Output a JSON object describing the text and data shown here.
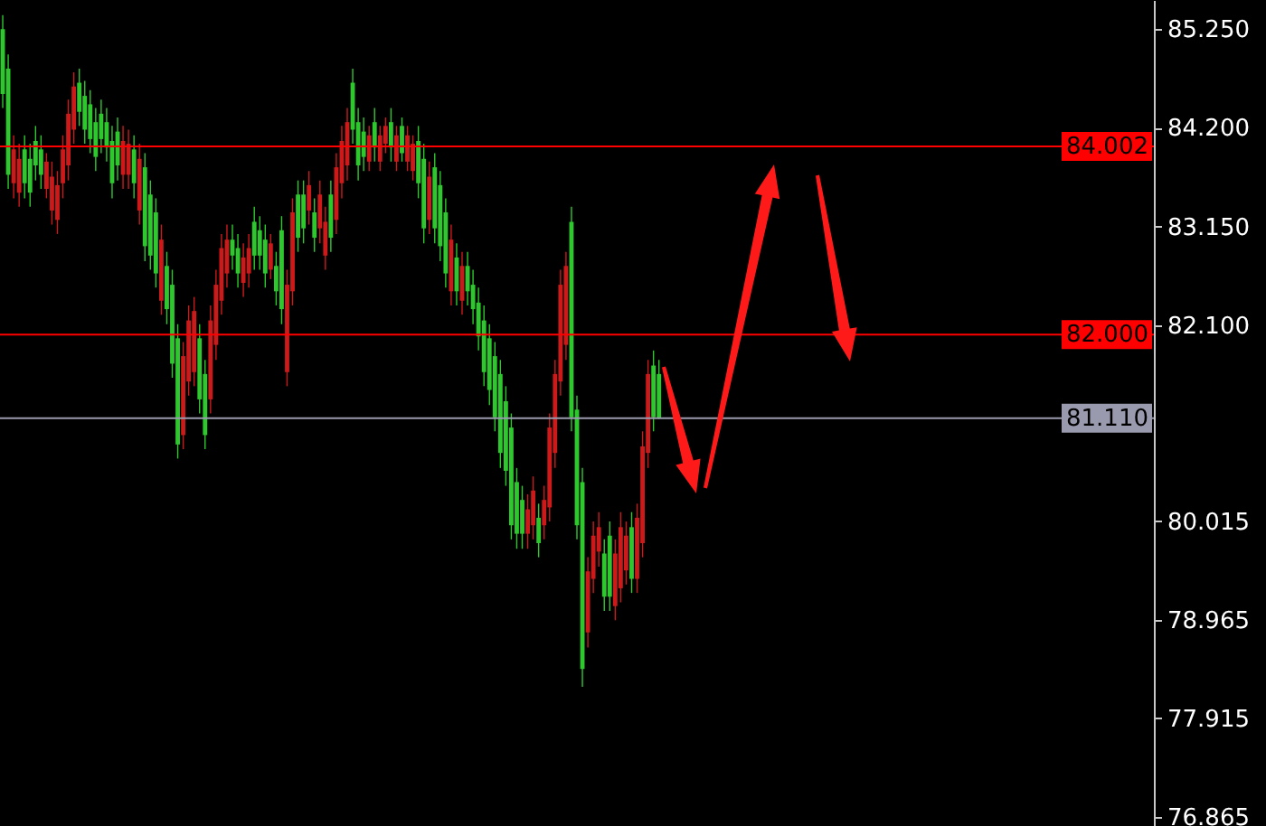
{
  "chart_data": {
    "type": "candlestick",
    "tick_labels": "y",
    "categories": [
      null,
      null,
      null,
      null,
      null,
      null,
      null,
      null,
      null,
      null,
      null,
      null,
      null,
      null,
      null,
      null,
      null,
      null,
      null,
      null,
      null,
      null,
      null,
      null,
      null,
      null,
      null,
      null,
      null,
      null,
      null,
      null,
      null,
      null,
      null,
      null,
      null,
      null,
      null,
      null,
      null,
      null,
      null,
      null,
      null,
      null,
      null,
      null,
      null,
      null,
      null,
      null,
      null,
      null,
      null,
      null,
      null,
      null,
      null,
      null,
      null,
      null,
      null,
      null,
      null,
      null,
      null,
      null,
      null,
      null,
      null,
      null,
      null,
      null,
      null,
      null,
      null,
      null,
      null,
      null,
      null,
      null,
      null,
      null,
      null,
      null,
      null,
      null,
      null,
      null,
      null,
      null,
      null,
      null,
      null,
      null,
      null,
      null,
      null,
      null,
      null,
      null,
      null,
      null,
      null,
      null,
      null,
      null,
      null,
      null,
      null,
      null,
      null,
      null,
      null,
      null,
      null,
      null,
      null,
      null,
      null,
      null,
      null,
      null,
      null,
      null,
      null,
      null,
      null,
      null,
      null,
      null,
      null,
      null,
      null,
      null,
      null,
      null,
      null,
      null,
      null,
      null,
      null,
      null,
      null,
      null,
      null,
      null,
      null,
      null,
      null,
      null,
      null,
      null,
      null,
      null,
      null,
      null,
      null,
      null,
      null,
      null,
      null,
      null,
      null,
      null,
      null,
      null,
      null,
      null,
      null,
      null,
      null,
      null,
      null,
      null,
      null,
      null,
      null,
      null,
      null,
      null,
      null,
      null,
      null,
      null,
      null,
      null,
      null,
      null,
      null,
      null,
      null,
      null,
      null,
      null,
      null,
      null,
      null,
      null,
      null,
      null,
      null,
      null,
      null,
      null,
      null,
      null,
      null,
      null,
      null
    ],
    "ohlc": [
      [
        85.25,
        85.4,
        84.41,
        84.56
      ],
      [
        84.83,
        84.98,
        83.55,
        83.7
      ],
      [
        83.61,
        84.12,
        83.45,
        83.97
      ],
      [
        83.51,
        84.03,
        83.36,
        83.87
      ],
      [
        83.97,
        84.12,
        83.45,
        83.61
      ],
      [
        83.87,
        84.03,
        83.36,
        83.51
      ],
      [
        84.06,
        84.22,
        83.64,
        83.8
      ],
      [
        83.97,
        84.12,
        83.55,
        83.7
      ],
      [
        83.55,
        83.93,
        83.45,
        83.84
      ],
      [
        83.32,
        83.84,
        83.17,
        83.68
      ],
      [
        83.22,
        83.74,
        83.07,
        83.59
      ],
      [
        83.61,
        84.12,
        83.45,
        83.97
      ],
      [
        83.8,
        84.5,
        83.64,
        84.35
      ],
      [
        84.18,
        84.79,
        84.03,
        84.64
      ],
      [
        84.68,
        84.83,
        84.22,
        84.37
      ],
      [
        84.54,
        84.7,
        84.03,
        84.18
      ],
      [
        84.45,
        84.6,
        83.93,
        84.08
      ],
      [
        84.26,
        84.41,
        83.74,
        83.89
      ],
      [
        84.35,
        84.5,
        83.93,
        84.08
      ],
      [
        84.26,
        84.41,
        83.84,
        83.99
      ],
      [
        84.06,
        84.22,
        83.45,
        83.61
      ],
      [
        84.16,
        84.31,
        83.64,
        83.8
      ],
      [
        83.7,
        84.22,
        83.55,
        84.06
      ],
      [
        83.7,
        84.18,
        83.55,
        84.03
      ],
      [
        83.97,
        84.12,
        83.45,
        83.61
      ],
      [
        83.32,
        84.03,
        83.17,
        83.87
      ],
      [
        83.78,
        83.93,
        82.78,
        82.94
      ],
      [
        83.49,
        83.64,
        82.69,
        82.84
      ],
      [
        83.3,
        83.45,
        82.5,
        82.65
      ],
      [
        82.36,
        83.17,
        82.21,
        83.01
      ],
      [
        82.73,
        82.88,
        82.11,
        82.27
      ],
      [
        82.53,
        82.69,
        81.54,
        81.69
      ],
      [
        81.96,
        82.11,
        80.68,
        80.83
      ],
      [
        80.93,
        81.92,
        80.78,
        81.77
      ],
      [
        81.5,
        82.31,
        81.35,
        82.15
      ],
      [
        81.6,
        82.4,
        81.45,
        82.25
      ],
      [
        81.96,
        82.11,
        81.16,
        81.31
      ],
      [
        81.58,
        81.73,
        80.78,
        80.93
      ],
      [
        81.31,
        82.31,
        81.16,
        82.15
      ],
      [
        81.89,
        82.69,
        81.73,
        82.53
      ],
      [
        82.36,
        83.07,
        82.21,
        82.92
      ],
      [
        82.65,
        83.17,
        82.5,
        83.01
      ],
      [
        83.01,
        83.17,
        82.69,
        82.84
      ],
      [
        82.92,
        83.07,
        82.5,
        82.65
      ],
      [
        82.55,
        82.97,
        82.4,
        82.82
      ],
      [
        82.65,
        83.07,
        82.5,
        82.92
      ],
      [
        83.2,
        83.36,
        82.69,
        82.84
      ],
      [
        83.11,
        83.26,
        82.69,
        82.84
      ],
      [
        83.01,
        83.17,
        82.5,
        82.65
      ],
      [
        82.69,
        83.07,
        82.59,
        82.97
      ],
      [
        82.73,
        82.88,
        82.31,
        82.46
      ],
      [
        83.11,
        83.26,
        82.11,
        82.27
      ],
      [
        81.6,
        82.69,
        81.45,
        82.53
      ],
      [
        82.46,
        83.45,
        82.31,
        83.3
      ],
      [
        83.49,
        83.64,
        82.88,
        83.03
      ],
      [
        83.49,
        83.64,
        82.97,
        83.13
      ],
      [
        83.32,
        83.74,
        83.17,
        83.59
      ],
      [
        83.3,
        83.45,
        82.88,
        83.03
      ],
      [
        83.13,
        83.64,
        82.97,
        83.49
      ],
      [
        82.84,
        83.36,
        82.69,
        83.2
      ],
      [
        83.49,
        83.64,
        82.88,
        83.03
      ],
      [
        83.22,
        83.93,
        83.07,
        83.78
      ],
      [
        83.61,
        84.22,
        83.45,
        84.06
      ],
      [
        83.8,
        84.41,
        83.64,
        84.26
      ],
      [
        84.68,
        84.83,
        84.03,
        84.18
      ],
      [
        84.26,
        84.41,
        83.64,
        83.8
      ],
      [
        84.16,
        84.31,
        83.74,
        83.89
      ],
      [
        83.84,
        84.22,
        83.74,
        84.12
      ],
      [
        84.26,
        84.41,
        83.84,
        83.99
      ],
      [
        83.84,
        84.22,
        83.74,
        84.12
      ],
      [
        84.03,
        84.31,
        83.93,
        84.22
      ],
      [
        84.26,
        84.41,
        83.84,
        83.99
      ],
      [
        83.84,
        84.22,
        83.74,
        84.12
      ],
      [
        84.22,
        84.31,
        83.84,
        83.93
      ],
      [
        83.84,
        84.22,
        83.74,
        84.12
      ],
      [
        83.74,
        84.12,
        83.64,
        84.03
      ],
      [
        84.06,
        84.22,
        83.45,
        83.61
      ],
      [
        83.87,
        84.03,
        82.97,
        83.13
      ],
      [
        83.22,
        83.84,
        83.07,
        83.68
      ],
      [
        83.78,
        83.93,
        82.97,
        83.13
      ],
      [
        83.59,
        83.74,
        82.78,
        82.94
      ],
      [
        83.3,
        83.45,
        82.5,
        82.65
      ],
      [
        82.46,
        83.17,
        82.31,
        83.01
      ],
      [
        82.82,
        82.97,
        82.31,
        82.46
      ],
      [
        82.36,
        82.88,
        82.21,
        82.73
      ],
      [
        82.73,
        82.88,
        82.31,
        82.46
      ],
      [
        82.53,
        82.69,
        82.11,
        82.27
      ],
      [
        82.34,
        82.5,
        81.83,
        81.98
      ],
      [
        82.15,
        82.31,
        81.45,
        81.6
      ],
      [
        81.96,
        82.11,
        81.25,
        81.41
      ],
      [
        81.77,
        81.92,
        80.97,
        81.12
      ],
      [
        81.58,
        81.73,
        80.58,
        80.74
      ],
      [
        81.29,
        81.45,
        80.39,
        80.55
      ],
      [
        81.01,
        81.16,
        79.82,
        79.97
      ],
      [
        80.43,
        80.58,
        79.72,
        79.88
      ],
      [
        80.24,
        80.39,
        79.72,
        79.88
      ],
      [
        79.88,
        80.3,
        79.72,
        80.14
      ],
      [
        79.97,
        80.49,
        79.82,
        80.34
      ],
      [
        80.05,
        80.2,
        79.63,
        79.78
      ],
      [
        79.97,
        80.39,
        79.82,
        80.24
      ],
      [
        80.16,
        81.16,
        80.01,
        81.01
      ],
      [
        80.74,
        81.73,
        80.58,
        81.58
      ],
      [
        81.5,
        82.69,
        81.35,
        82.53
      ],
      [
        81.89,
        82.88,
        81.73,
        82.73
      ],
      [
        83.2,
        83.36,
        80.97,
        81.12
      ],
      [
        81.2,
        81.35,
        79.82,
        79.97
      ],
      [
        80.43,
        80.58,
        78.25,
        78.44
      ],
      [
        78.83,
        79.63,
        78.67,
        79.48
      ],
      [
        79.4,
        80.01,
        79.25,
        79.86
      ],
      [
        79.69,
        80.11,
        79.53,
        79.95
      ],
      [
        79.67,
        79.82,
        79.06,
        79.21
      ],
      [
        79.86,
        80.01,
        79.06,
        79.21
      ],
      [
        79.11,
        79.82,
        78.96,
        79.67
      ],
      [
        79.3,
        80.11,
        79.15,
        79.95
      ],
      [
        79.49,
        80.01,
        79.34,
        79.86
      ],
      [
        79.95,
        80.11,
        79.25,
        79.4
      ],
      [
        79.4,
        80.2,
        79.25,
        80.05
      ],
      [
        79.78,
        80.97,
        79.63,
        80.81
      ],
      [
        80.74,
        81.73,
        80.58,
        81.58
      ],
      [
        81.67,
        81.83,
        80.97,
        81.12
      ],
      [
        81.58,
        81.73,
        81.1,
        81.11
      ],
      null,
      null,
      null,
      null,
      null,
      null,
      null,
      null,
      null,
      null,
      null,
      null,
      null,
      null,
      null,
      null,
      null,
      null,
      null,
      null,
      null,
      null,
      null,
      null,
      null,
      null,
      null,
      null,
      null,
      null,
      null,
      null,
      null,
      null,
      null,
      null,
      null,
      null,
      null,
      null,
      null,
      null,
      null,
      null,
      null,
      null,
      null,
      null,
      null,
      null,
      null,
      null,
      null,
      null,
      null,
      null,
      null,
      null,
      null,
      null,
      null,
      null,
      null,
      null,
      null,
      null,
      null,
      null,
      null,
      null,
      null,
      null,
      null,
      null,
      null,
      null,
      null,
      null,
      null,
      null,
      null,
      null,
      null,
      null,
      null,
      null,
      null,
      null,
      null,
      null
    ],
    "colors": [
      "#2ec82e",
      "#2ec82e",
      "#cc1a1a",
      "#cc1a1a",
      "#2ec82e",
      "#2ec82e",
      "#2ec82e",
      "#2ec82e",
      "#cc1a1a",
      "#cc1a1a",
      "#cc1a1a",
      "#cc1a1a",
      "#cc1a1a",
      "#cc1a1a",
      "#2ec82e",
      "#2ec82e",
      "#2ec82e",
      "#2ec82e",
      "#2ec82e",
      "#2ec82e",
      "#2ec82e",
      "#2ec82e",
      "#cc1a1a",
      "#cc1a1a",
      "#2ec82e",
      "#cc1a1a",
      "#2ec82e",
      "#2ec82e",
      "#2ec82e",
      "#cc1a1a",
      "#2ec82e",
      "#2ec82e",
      "#2ec82e",
      "#cc1a1a",
      "#cc1a1a",
      "#cc1a1a",
      "#2ec82e",
      "#2ec82e",
      "#cc1a1a",
      "#cc1a1a",
      "#cc1a1a",
      "#cc1a1a",
      "#2ec82e",
      "#2ec82e",
      "#cc1a1a",
      "#cc1a1a",
      "#2ec82e",
      "#2ec82e",
      "#2ec82e",
      "#cc1a1a",
      "#2ec82e",
      "#2ec82e",
      "#cc1a1a",
      "#cc1a1a",
      "#2ec82e",
      "#2ec82e",
      "#cc1a1a",
      "#2ec82e",
      "#cc1a1a",
      "#cc1a1a",
      "#2ec82e",
      "#cc1a1a",
      "#cc1a1a",
      "#cc1a1a",
      "#2ec82e",
      "#2ec82e",
      "#2ec82e",
      "#cc1a1a",
      "#2ec82e",
      "#cc1a1a",
      "#cc1a1a",
      "#2ec82e",
      "#cc1a1a",
      "#2ec82e",
      "#cc1a1a",
      "#cc1a1a",
      "#2ec82e",
      "#2ec82e",
      "#cc1a1a",
      "#2ec82e",
      "#2ec82e",
      "#2ec82e",
      "#cc1a1a",
      "#2ec82e",
      "#cc1a1a",
      "#2ec82e",
      "#2ec82e",
      "#2ec82e",
      "#2ec82e",
      "#2ec82e",
      "#2ec82e",
      "#2ec82e",
      "#2ec82e",
      "#2ec82e",
      "#2ec82e",
      "#2ec82e",
      "#cc1a1a",
      "#cc1a1a",
      "#2ec82e",
      "#cc1a1a",
      "#cc1a1a",
      "#cc1a1a",
      "#cc1a1a",
      "#cc1a1a",
      "#2ec82e",
      "#2ec82e",
      "#2ec82e",
      "#cc1a1a",
      "#cc1a1a",
      "#cc1a1a",
      "#2ec82e",
      "#2ec82e",
      "#cc1a1a",
      "#cc1a1a",
      "#cc1a1a",
      "#2ec82e",
      "#cc1a1a",
      "#cc1a1a",
      "#cc1a1a",
      "#2ec82e",
      "#2ec82e",
      null,
      null,
      null,
      null,
      null,
      null,
      null,
      null,
      null,
      null,
      null,
      null,
      null,
      null,
      null,
      null,
      null,
      null,
      null,
      null,
      null,
      null,
      null,
      null,
      null,
      null,
      null,
      null,
      null,
      null,
      null,
      null,
      null,
      null,
      null,
      null,
      null,
      null,
      null,
      null,
      null,
      null,
      null,
      null,
      null,
      null,
      null,
      null,
      null,
      null,
      null,
      null,
      null,
      null,
      null,
      null,
      null,
      null,
      null,
      null,
      null,
      null,
      null,
      null,
      null,
      null,
      null,
      null,
      null,
      null,
      null,
      null,
      null,
      null,
      null,
      null,
      null,
      null,
      null,
      null,
      null,
      null,
      null,
      null,
      null,
      null,
      null,
      null,
      null,
      null
    ],
    "ylim": [
      76.77,
      85.56
    ],
    "yticks": [
      {
        "value": 76.865,
        "label": "76.865"
      },
      {
        "value": 77.915,
        "label": "77.915"
      },
      {
        "value": 78.965,
        "label": "78.965"
      },
      {
        "value": 80.015,
        "label": "80.015"
      },
      {
        "value": 82.1,
        "label": "82.100"
      },
      {
        "value": 83.15,
        "label": "83.150"
      },
      {
        "value": 84.2,
        "label": "84.200"
      },
      {
        "value": 85.25,
        "label": "85.250"
      }
    ],
    "ref_lines": [
      {
        "axis": "y",
        "value": 84.002,
        "label": "84.002",
        "color": "#ff0000"
      },
      {
        "axis": "y",
        "value": 82.0,
        "label": "82.000",
        "color": "#ff0000"
      },
      {
        "axis": "y",
        "value": 81.11,
        "label": "81.110",
        "color": "#9a9aae"
      }
    ]
  }
}
